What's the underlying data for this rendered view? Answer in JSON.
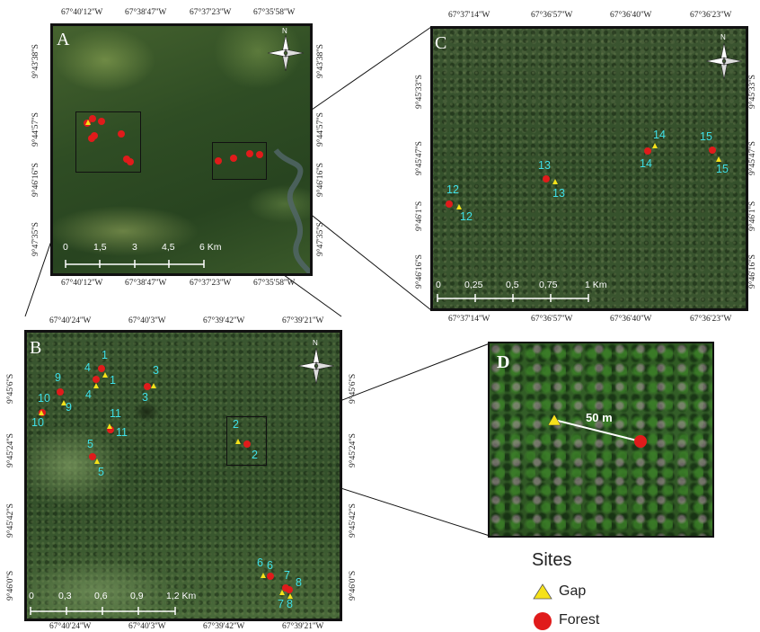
{
  "panels": {
    "A": {
      "label": "A",
      "top_coords": [
        "67°40'12''W",
        "67°38'47''W",
        "67°37'23''W",
        "67°35'58''W"
      ],
      "bottom_coords": [
        "67°40'12''W",
        "67°38'47''W",
        "67°37'23''W",
        "67°35'58''W"
      ],
      "left_coords": [
        "9°43'38''S",
        "9°44'57''S",
        "9°46'16''S",
        "9°47'35''S"
      ],
      "right_coords": [
        "9°43'38''S",
        "9°44'57''S",
        "9°46'16''S",
        "9°47'35''S"
      ],
      "scale_labels": [
        "0",
        "1,5",
        "3",
        "4,5",
        "6 Km"
      ],
      "north": "N"
    },
    "B": {
      "label": "B",
      "top_coords": [
        "67°40'24''W",
        "67°40'3''W",
        "67°39'42''W",
        "67°39'21''W"
      ],
      "bottom_coords": [
        "67°40'24''W",
        "67°40'3''W",
        "67°39'42''W",
        "67°39'21''W"
      ],
      "left_coords": [
        "9°45'6''S",
        "9°45'24''S",
        "9°45'42''S",
        "9°46'0''S"
      ],
      "right_coords": [
        "9°45'6''S",
        "9°45'24''S",
        "9°45'42''S",
        "9°46'0''S"
      ],
      "scale_labels": [
        "0",
        "0,3",
        "0,6",
        "0,9",
        "1,2 Km"
      ],
      "north": "N",
      "site_numbers": [
        "1",
        "1",
        "2",
        "2",
        "3",
        "3",
        "4",
        "4",
        "5",
        "5",
        "6",
        "6",
        "7",
        "8",
        "7",
        "8",
        "9",
        "9",
        "10",
        "10",
        "11",
        "11"
      ]
    },
    "C": {
      "label": "C",
      "top_coords": [
        "67°37'14''W",
        "67°36'57''W",
        "67°36'40''W",
        "67°36'23''W"
      ],
      "bottom_coords": [
        "67°37'14''W",
        "67°36'57''W",
        "67°36'40''W",
        "67°36'23''W"
      ],
      "left_coords": [
        "9°45'33''S",
        "9°45'47''S",
        "9°46'1''S",
        "9°46'16''S"
      ],
      "right_coords": [
        "9°45'33''S",
        "9°45'47''S",
        "9°46'1''S",
        "9°46'16''S"
      ],
      "scale_labels": [
        "0",
        "0,25",
        "0,5",
        "0,75",
        "1 Km"
      ],
      "north": "N",
      "site_numbers": [
        "12",
        "12",
        "13",
        "13",
        "14",
        "14",
        "15",
        "15"
      ]
    },
    "D": {
      "label": "D",
      "distance_label": "50 m"
    }
  },
  "legend": {
    "title": "Sites",
    "items": [
      {
        "label": "Gap",
        "color": "#f6e21a",
        "shape": "triangle"
      },
      {
        "label": "Forest",
        "color": "#e01b1b",
        "shape": "circle"
      }
    ]
  },
  "colors": {
    "gap": "#f6e21a",
    "forest": "#e01b1b",
    "site_number": "#3fe0e8"
  }
}
